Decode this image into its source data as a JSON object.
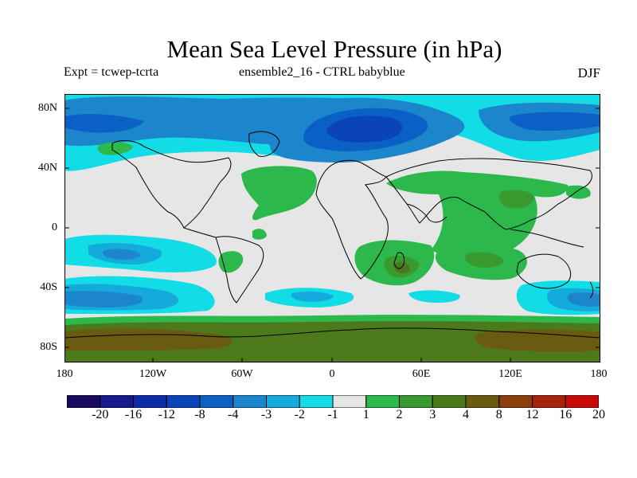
{
  "title": "Mean Sea Level Pressure (in hPa)",
  "subtitle_left": "Expt = tcwep-tcrta",
  "subtitle_center": "ensemble2_16 - CTRL babyblue",
  "subtitle_right": "DJF",
  "y_ticks": [
    "80N",
    "40N",
    "0",
    "40S",
    "80S"
  ],
  "x_ticks": [
    "180",
    "120W",
    "60W",
    "0",
    "60E",
    "120E",
    "180"
  ],
  "colorbar": {
    "labels": [
      "-20",
      "-16",
      "-12",
      "-8",
      "-4",
      "-3",
      "-2",
      "-1",
      "1",
      "2",
      "3",
      "4",
      "8",
      "12",
      "16",
      "20"
    ],
    "colors": [
      "#1a0a5e",
      "#141a8a",
      "#0d2aa8",
      "#0a44b8",
      "#0a60c4",
      "#1c86cc",
      "#14aadc",
      "#12dce6",
      "#e6e6e6",
      "#2cb84a",
      "#3a9a30",
      "#4c7a1a",
      "#6a5a12",
      "#8c3e0c",
      "#a8220a",
      "#c80a0a"
    ]
  }
}
